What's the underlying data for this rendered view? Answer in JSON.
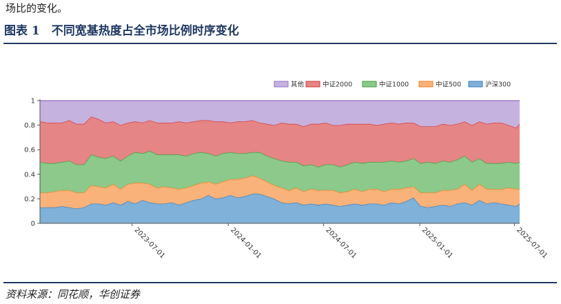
{
  "lead_text": "场比的变化。",
  "figure_title": "图表 1　不同宽基热度占全市场比例时序变化",
  "source_text": "资料来源：同花顺，华创证券",
  "colors": {
    "hs300": "#7fb1d9",
    "zz500": "#f9b27a",
    "zz1000": "#8cc98a",
    "zz2000": "#e58585",
    "other": "#c6b2de",
    "hs300_line": "#3a7cb8",
    "zz500_line": "#f07f1e",
    "zz1000_line": "#3c9e3c",
    "zz2000_line": "#d33636",
    "other_line": "#8f6fc0",
    "rule": "#1f3864"
  },
  "chart_data": {
    "type": "area",
    "stacked": true,
    "title": "",
    "xlabel": "",
    "ylabel": "",
    "ylim": [
      0,
      1
    ],
    "yticks": [
      "0",
      "0.2",
      "0.4",
      "0.6",
      "0.8",
      "1"
    ],
    "xticks": [
      "2023-07-01",
      "2024-01-01",
      "2024-07-01",
      "2025-01-01",
      "2025-07-01"
    ],
    "legend_position": "top-right",
    "legend_order": [
      "其他",
      "中证2000",
      "中证1000",
      "中证500",
      "沪深300"
    ],
    "grid": false,
    "x": [
      "2023-01-06",
      "2023-01-20",
      "2023-02-03",
      "2023-02-17",
      "2023-03-03",
      "2023-03-17",
      "2023-03-31",
      "2023-04-14",
      "2023-04-28",
      "2023-05-12",
      "2023-05-26",
      "2023-06-09",
      "2023-06-23",
      "2023-07-07",
      "2023-07-21",
      "2023-08-04",
      "2023-08-18",
      "2023-09-01",
      "2023-09-15",
      "2023-09-29",
      "2023-10-13",
      "2023-10-27",
      "2023-11-10",
      "2023-11-24",
      "2023-12-08",
      "2023-12-22",
      "2024-01-05",
      "2024-01-19",
      "2024-02-02",
      "2024-02-16",
      "2024-03-01",
      "2024-03-15",
      "2024-03-29",
      "2024-04-12",
      "2024-04-26",
      "2024-05-10",
      "2024-05-24",
      "2024-06-07",
      "2024-06-21",
      "2024-07-05",
      "2024-07-19",
      "2024-08-02",
      "2024-08-16",
      "2024-08-30",
      "2024-09-13",
      "2024-09-27",
      "2024-10-11",
      "2024-10-25",
      "2024-11-08",
      "2024-11-22",
      "2024-12-06",
      "2024-12-20",
      "2025-01-03",
      "2025-01-17",
      "2025-01-31",
      "2025-02-14",
      "2025-02-28",
      "2025-03-14",
      "2025-03-28",
      "2025-04-11",
      "2025-04-25",
      "2025-05-09",
      "2025-05-23",
      "2025-06-06",
      "2025-06-20",
      "2025-07-04",
      "2025-07-11"
    ],
    "series": [
      {
        "name": "沪深300",
        "values": [
          0.13,
          0.13,
          0.13,
          0.14,
          0.13,
          0.12,
          0.13,
          0.16,
          0.16,
          0.15,
          0.17,
          0.15,
          0.18,
          0.16,
          0.19,
          0.17,
          0.16,
          0.16,
          0.17,
          0.15,
          0.17,
          0.19,
          0.2,
          0.23,
          0.2,
          0.21,
          0.23,
          0.21,
          0.22,
          0.24,
          0.24,
          0.22,
          0.2,
          0.17,
          0.16,
          0.17,
          0.15,
          0.16,
          0.15,
          0.16,
          0.15,
          0.14,
          0.15,
          0.16,
          0.15,
          0.16,
          0.16,
          0.15,
          0.17,
          0.16,
          0.18,
          0.21,
          0.14,
          0.13,
          0.14,
          0.15,
          0.14,
          0.16,
          0.17,
          0.15,
          0.19,
          0.16,
          0.17,
          0.16,
          0.15,
          0.14,
          0.16
        ]
      },
      {
        "name": "中证500",
        "values": [
          0.12,
          0.12,
          0.13,
          0.13,
          0.14,
          0.13,
          0.12,
          0.15,
          0.14,
          0.14,
          0.15,
          0.13,
          0.14,
          0.17,
          0.14,
          0.15,
          0.13,
          0.14,
          0.12,
          0.13,
          0.12,
          0.12,
          0.13,
          0.11,
          0.12,
          0.13,
          0.13,
          0.15,
          0.15,
          0.15,
          0.13,
          0.12,
          0.11,
          0.12,
          0.11,
          0.12,
          0.11,
          0.12,
          0.12,
          0.11,
          0.12,
          0.11,
          0.11,
          0.12,
          0.11,
          0.12,
          0.12,
          0.11,
          0.11,
          0.12,
          0.11,
          0.09,
          0.11,
          0.12,
          0.11,
          0.12,
          0.13,
          0.12,
          0.15,
          0.12,
          0.13,
          0.12,
          0.11,
          0.12,
          0.14,
          0.14,
          0.12
        ]
      },
      {
        "name": "中证1000",
        "values": [
          0.25,
          0.24,
          0.23,
          0.23,
          0.24,
          0.23,
          0.23,
          0.25,
          0.24,
          0.24,
          0.23,
          0.23,
          0.23,
          0.25,
          0.24,
          0.27,
          0.27,
          0.26,
          0.27,
          0.28,
          0.26,
          0.26,
          0.25,
          0.23,
          0.23,
          0.23,
          0.22,
          0.21,
          0.2,
          0.19,
          0.21,
          0.21,
          0.22,
          0.22,
          0.23,
          0.21,
          0.21,
          0.2,
          0.19,
          0.21,
          0.21,
          0.21,
          0.22,
          0.22,
          0.23,
          0.22,
          0.22,
          0.24,
          0.23,
          0.22,
          0.22,
          0.23,
          0.24,
          0.25,
          0.24,
          0.24,
          0.23,
          0.24,
          0.23,
          0.23,
          0.21,
          0.21,
          0.21,
          0.21,
          0.21,
          0.21,
          0.22
        ]
      },
      {
        "name": "中证2000",
        "values": [
          0.33,
          0.33,
          0.33,
          0.32,
          0.33,
          0.33,
          0.33,
          0.31,
          0.31,
          0.29,
          0.28,
          0.29,
          0.27,
          0.25,
          0.25,
          0.25,
          0.26,
          0.26,
          0.26,
          0.27,
          0.27,
          0.26,
          0.26,
          0.27,
          0.28,
          0.26,
          0.24,
          0.26,
          0.26,
          0.26,
          0.24,
          0.26,
          0.27,
          0.31,
          0.31,
          0.31,
          0.32,
          0.33,
          0.35,
          0.34,
          0.32,
          0.34,
          0.33,
          0.31,
          0.32,
          0.31,
          0.3,
          0.31,
          0.31,
          0.31,
          0.31,
          0.29,
          0.3,
          0.29,
          0.3,
          0.3,
          0.3,
          0.29,
          0.28,
          0.3,
          0.3,
          0.32,
          0.33,
          0.33,
          0.3,
          0.29,
          0.31
        ]
      },
      {
        "name": "其他",
        "values": [
          0.17,
          0.18,
          0.18,
          0.18,
          0.16,
          0.19,
          0.19,
          0.13,
          0.15,
          0.18,
          0.17,
          0.2,
          0.18,
          0.17,
          0.18,
          0.16,
          0.18,
          0.18,
          0.18,
          0.17,
          0.18,
          0.17,
          0.16,
          0.16,
          0.17,
          0.17,
          0.18,
          0.17,
          0.17,
          0.16,
          0.18,
          0.19,
          0.2,
          0.18,
          0.19,
          0.19,
          0.21,
          0.19,
          0.19,
          0.18,
          0.2,
          0.2,
          0.19,
          0.19,
          0.19,
          0.19,
          0.2,
          0.19,
          0.18,
          0.19,
          0.18,
          0.18,
          0.21,
          0.21,
          0.21,
          0.19,
          0.2,
          0.19,
          0.17,
          0.2,
          0.17,
          0.19,
          0.18,
          0.18,
          0.2,
          0.22,
          0.19
        ]
      }
    ]
  }
}
